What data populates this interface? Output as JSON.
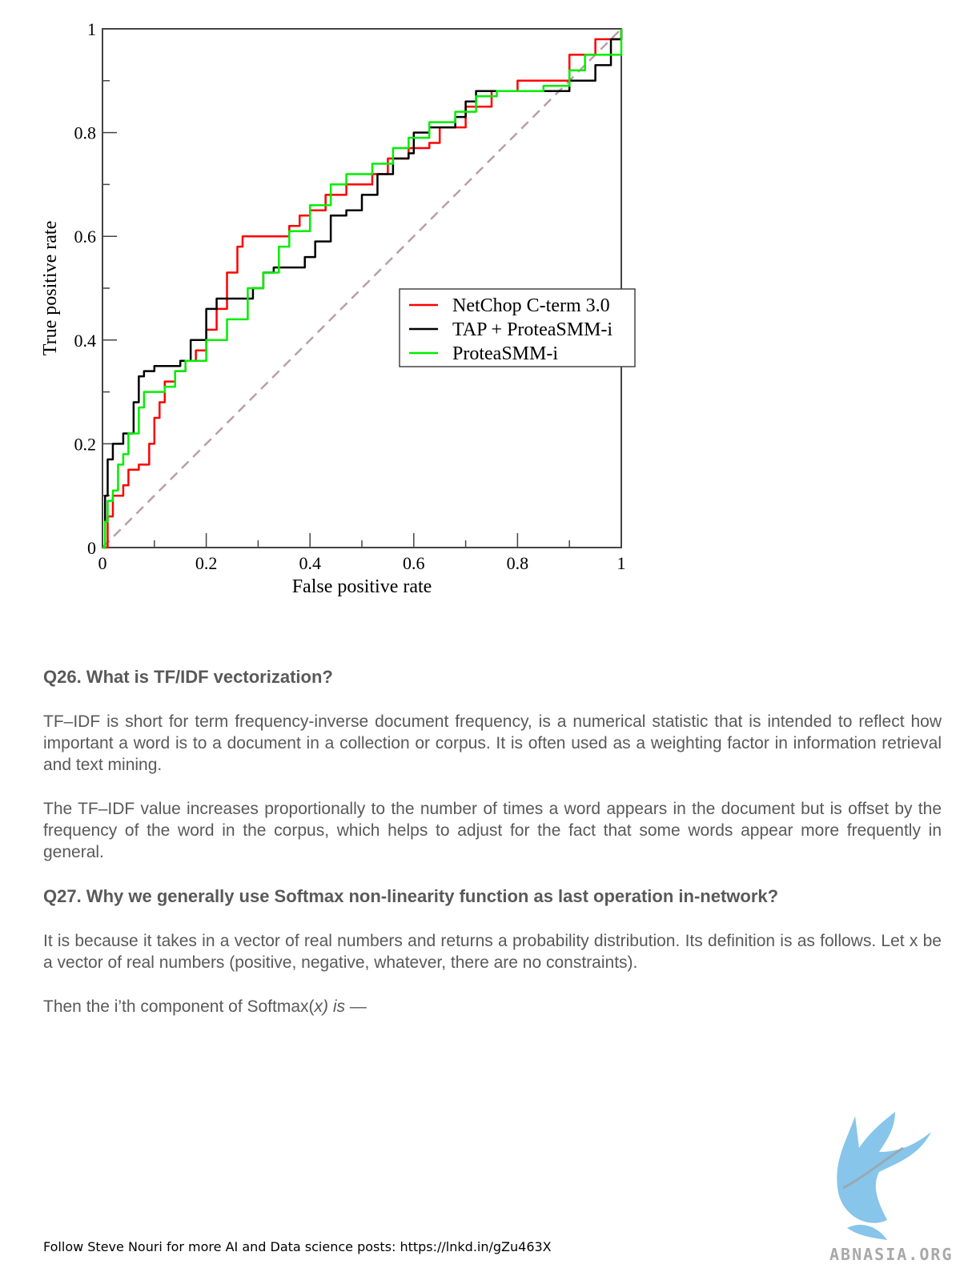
{
  "chart_data": {
    "type": "line",
    "xlabel": "False positive rate",
    "ylabel": "True positive rate",
    "xlim": [
      0,
      1
    ],
    "ylim": [
      0,
      1
    ],
    "x_ticks": [
      "0",
      "0.2",
      "0.4",
      "0.6",
      "0.8",
      "1"
    ],
    "y_ticks": [
      "0",
      "0.2",
      "0.4",
      "0.6",
      "0.8",
      "1"
    ],
    "legend_position": "center-right",
    "reference_line": {
      "x": [
        0,
        1
      ],
      "y": [
        0,
        1
      ],
      "style": "dashed",
      "color": "#b9a0a8"
    },
    "series": [
      {
        "name": "NetChop C-term 3.0",
        "color": "#ff0000",
        "x": [
          0,
          0.01,
          0.02,
          0.04,
          0.05,
          0.07,
          0.09,
          0.1,
          0.11,
          0.12,
          0.14,
          0.16,
          0.18,
          0.2,
          0.22,
          0.24,
          0.26,
          0.27,
          0.3,
          0.34,
          0.36,
          0.38,
          0.4,
          0.43,
          0.47,
          0.52,
          0.55,
          0.59,
          0.63,
          0.65,
          0.7,
          0.75,
          0.8,
          0.9,
          0.95,
          1.0
        ],
        "y": [
          0,
          0.06,
          0.1,
          0.12,
          0.15,
          0.16,
          0.2,
          0.25,
          0.28,
          0.32,
          0.34,
          0.36,
          0.38,
          0.42,
          0.46,
          0.53,
          0.58,
          0.6,
          0.6,
          0.6,
          0.62,
          0.64,
          0.65,
          0.68,
          0.7,
          0.72,
          0.75,
          0.77,
          0.78,
          0.81,
          0.85,
          0.88,
          0.9,
          0.95,
          0.98,
          1.0
        ]
      },
      {
        "name": "TAP + ProteaSMM-i",
        "color": "#000000",
        "x": [
          0,
          0.005,
          0.01,
          0.02,
          0.04,
          0.06,
          0.07,
          0.08,
          0.1,
          0.15,
          0.17,
          0.2,
          0.22,
          0.25,
          0.29,
          0.31,
          0.33,
          0.35,
          0.39,
          0.41,
          0.44,
          0.47,
          0.5,
          0.53,
          0.56,
          0.59,
          0.6,
          0.63,
          0.68,
          0.7,
          0.72,
          0.75,
          0.85,
          0.9,
          0.95,
          0.98,
          1.0
        ],
        "y": [
          0,
          0.1,
          0.17,
          0.2,
          0.22,
          0.28,
          0.33,
          0.34,
          0.35,
          0.36,
          0.4,
          0.46,
          0.48,
          0.48,
          0.5,
          0.53,
          0.54,
          0.54,
          0.56,
          0.59,
          0.64,
          0.65,
          0.68,
          0.72,
          0.75,
          0.76,
          0.8,
          0.81,
          0.83,
          0.86,
          0.88,
          0.88,
          0.88,
          0.9,
          0.93,
          0.98,
          1.0
        ]
      },
      {
        "name": "ProteaSMM-i",
        "color": "#00ee00",
        "x": [
          0,
          0.005,
          0.01,
          0.02,
          0.03,
          0.04,
          0.05,
          0.07,
          0.08,
          0.1,
          0.12,
          0.14,
          0.16,
          0.2,
          0.24,
          0.28,
          0.31,
          0.34,
          0.36,
          0.4,
          0.44,
          0.47,
          0.52,
          0.56,
          0.59,
          0.63,
          0.68,
          0.72,
          0.76,
          0.8,
          0.85,
          0.9,
          0.93,
          0.97,
          1.0
        ],
        "y": [
          0,
          0.05,
          0.09,
          0.11,
          0.16,
          0.18,
          0.22,
          0.27,
          0.3,
          0.3,
          0.31,
          0.34,
          0.36,
          0.4,
          0.44,
          0.5,
          0.53,
          0.58,
          0.61,
          0.66,
          0.7,
          0.72,
          0.74,
          0.77,
          0.79,
          0.82,
          0.84,
          0.87,
          0.88,
          0.88,
          0.89,
          0.92,
          0.95,
          0.95,
          1.0
        ]
      }
    ]
  },
  "doc": {
    "q26": "Q26. What is TF/IDF vectorization?",
    "p1": "TF–IDF is short for term frequency-inverse document frequency, is a numerical statistic that is intended to reflect how important a word is to a document in a collection or corpus. It is often used as a weighting factor in information retrieval and text mining.",
    "p2": "The TF–IDF value increases proportionally to the number of times a word appears in the document but is offset by the frequency of the word in the corpus, which helps to adjust for the fact that some words appear more frequently in general.",
    "q27": "Q27. Why we generally use Softmax non-linearity function as last operation in-network?",
    "p3": "It is because it takes in a vector of real numbers and returns a probability distribution. Its definition is as follows. Let x be a vector of real numbers (positive, negative, whatever, there are no constraints).",
    "p4_a": "Then the i’th component of Softmax(",
    "p4_b": "x) is",
    "p4_c": " —",
    "footer": "Follow Steve Nouri for more AI and Data science posts: https://lnkd.in/gZu463X",
    "logo_text": "ABNASIA.ORG"
  }
}
